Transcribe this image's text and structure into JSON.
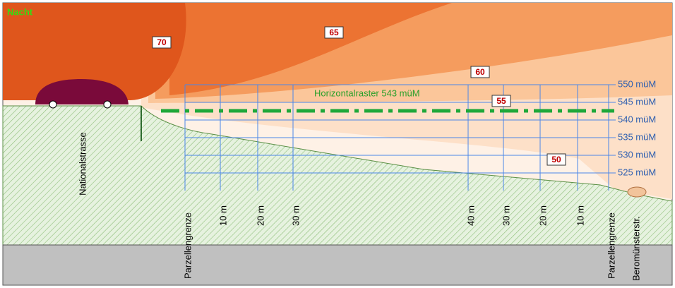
{
  "title": "Nacht",
  "contour_labels": [
    "70",
    "65",
    "60",
    "55",
    "50"
  ],
  "elevation_labels": [
    "550 müM",
    "545 müM",
    "540 müM",
    "535 müM",
    "530 müM",
    "525 müM"
  ],
  "raster_label": "Horizontalraster 543 müM",
  "distance_labels": [
    "Parzellengrenze",
    "10 m",
    "20 m",
    "30 m",
    "40 m",
    "30 m",
    "20 m",
    "10 m",
    "Parzellengrenze"
  ],
  "road_labels": [
    "Nationalstrasse",
    "Beromünsterstr."
  ]
}
